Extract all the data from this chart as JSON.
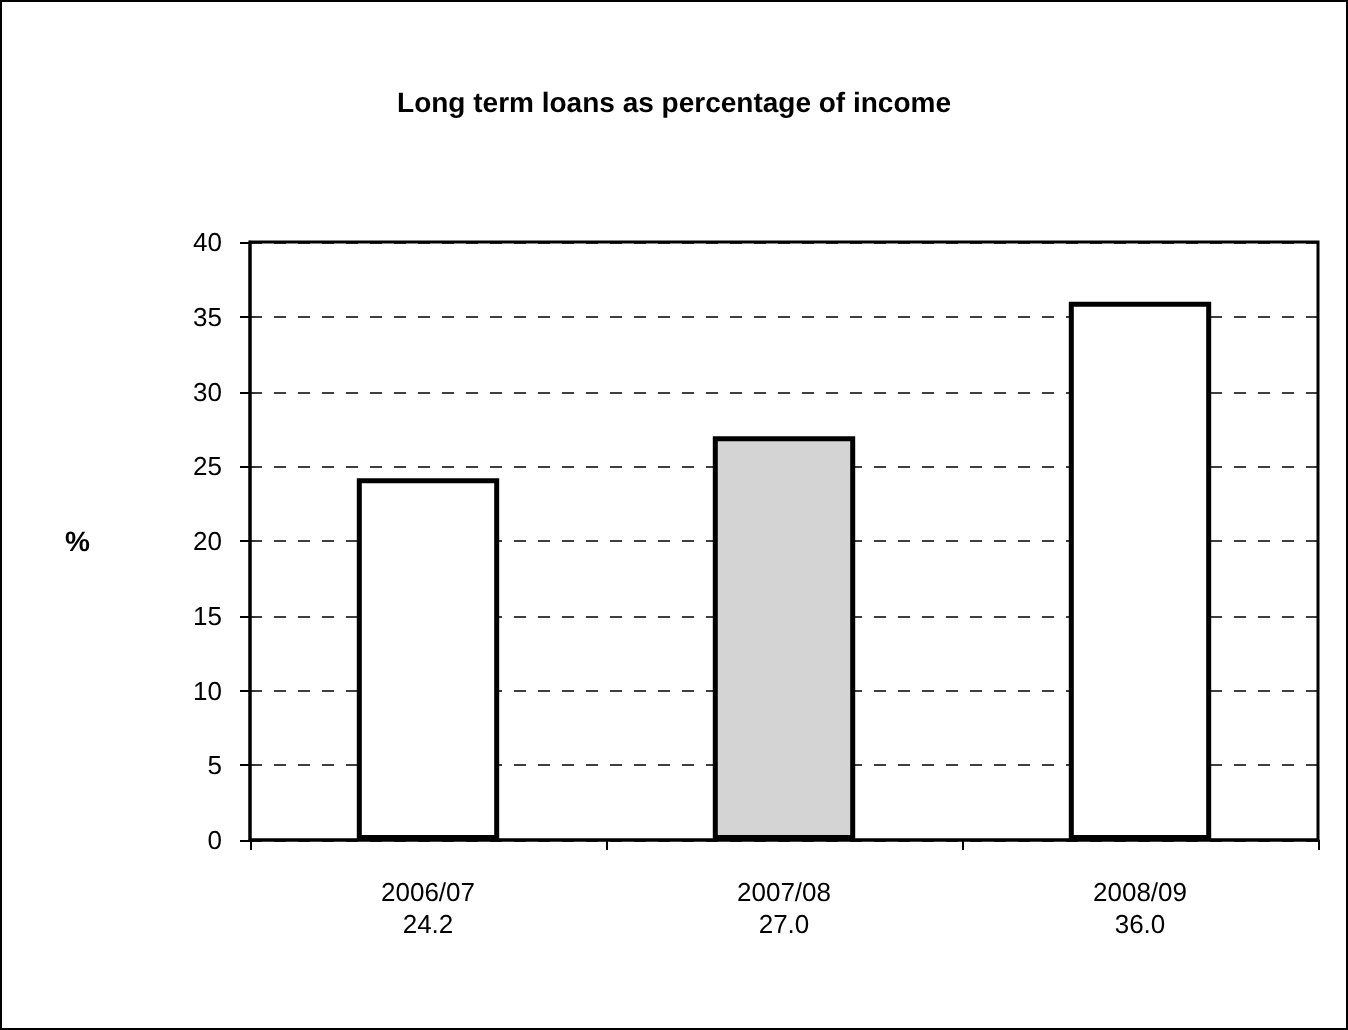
{
  "chart_data": {
    "type": "bar",
    "title": "Long term loans as percentage of income",
    "ylabel": "%",
    "categories": [
      "2006/07",
      "2007/08",
      "2008/09"
    ],
    "values": [
      24.2,
      27.0,
      36.0
    ],
    "value_labels": [
      "24.2",
      "27.0",
      "36.0"
    ],
    "colors": [
      "#ffffff",
      "#d4d4d4",
      "#ffffff"
    ],
    "ylim": [
      0,
      40
    ],
    "yticks": [
      0,
      5,
      10,
      15,
      20,
      25,
      30,
      35,
      40
    ],
    "grid": "y"
  }
}
